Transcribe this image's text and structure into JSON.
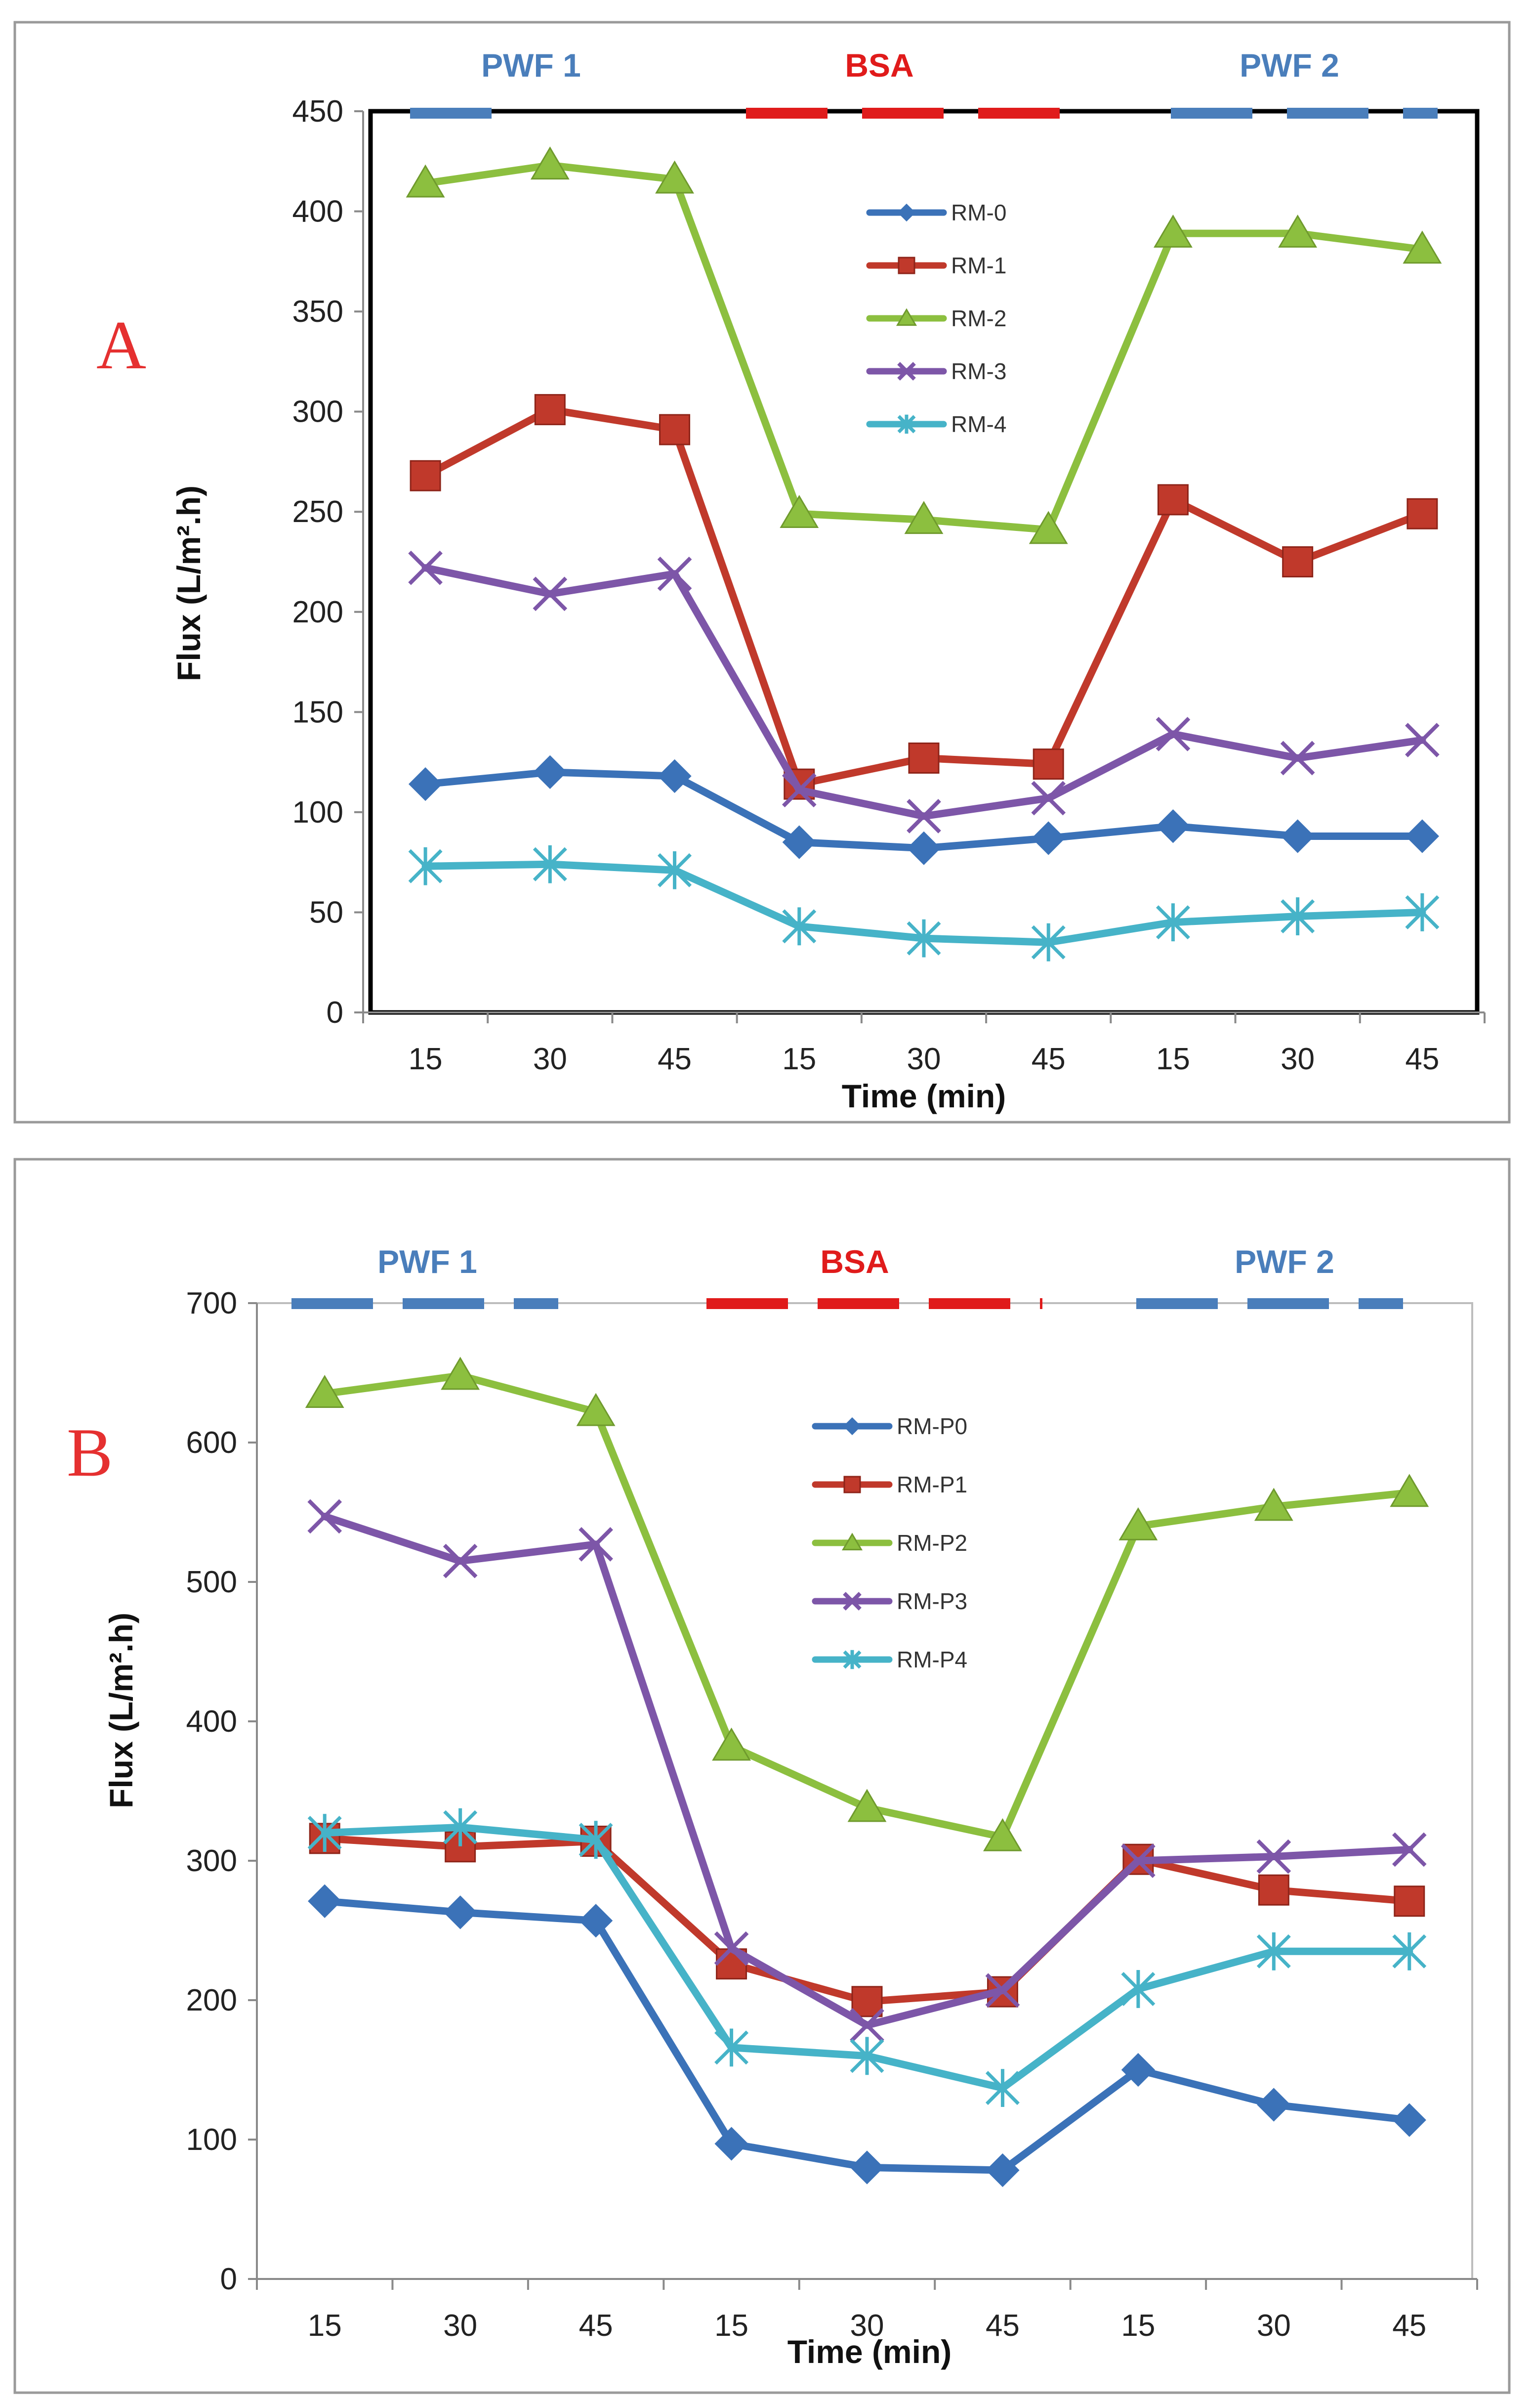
{
  "chart_data": [
    {
      "type": "line",
      "panel_label": "A",
      "xlabel": "Time (min)",
      "ylabel": "Flux (L/m².h)",
      "ylim": [
        0,
        450
      ],
      "yticks": [
        0,
        50,
        100,
        150,
        200,
        250,
        300,
        350,
        400,
        450
      ],
      "categories": [
        "15",
        "30",
        "45",
        "15",
        "30",
        "45",
        "15",
        "30",
        "45"
      ],
      "phases": [
        {
          "label": "PWF 1",
          "color": "#4a7ebb"
        },
        {
          "label": "BSA",
          "color": "#e01b1b"
        },
        {
          "label": "PWF 2",
          "color": "#4a7ebb"
        }
      ],
      "legend_position": "top-center",
      "series": [
        {
          "name": "RM-0",
          "color": "#3b72b8",
          "marker": "diamond",
          "values": [
            114,
            120,
            118,
            85,
            82,
            87,
            93,
            88,
            88
          ]
        },
        {
          "name": "RM-1",
          "color": "#c0392b",
          "marker": "square",
          "values": [
            268,
            301,
            291,
            114,
            127,
            124,
            256,
            225,
            249
          ]
        },
        {
          "name": "RM-2",
          "color": "#8cbf3f",
          "marker": "triangle",
          "values": [
            414,
            423,
            416,
            249,
            246,
            241,
            389,
            389,
            381
          ]
        },
        {
          "name": "RM-3",
          "color": "#7d56a8",
          "marker": "x",
          "values": [
            222,
            209,
            219,
            111,
            98,
            107,
            139,
            127,
            136
          ]
        },
        {
          "name": "RM-4",
          "color": "#46b3c8",
          "marker": "star",
          "values": [
            73,
            74,
            71,
            43,
            37,
            35,
            45,
            48,
            50
          ]
        }
      ]
    },
    {
      "type": "line",
      "panel_label": "B",
      "xlabel": "Time (min)",
      "ylabel": "Flux (L/m².h)",
      "ylim": [
        0,
        700
      ],
      "yticks": [
        0,
        100,
        200,
        300,
        400,
        500,
        600,
        700
      ],
      "categories": [
        "15",
        "30",
        "45",
        "15",
        "30",
        "45",
        "15",
        "30",
        "45"
      ],
      "phases": [
        {
          "label": "PWF 1",
          "color": "#4a7ebb"
        },
        {
          "label": "BSA",
          "color": "#e01b1b"
        },
        {
          "label": "PWF 2",
          "color": "#4a7ebb"
        }
      ],
      "legend_position": "top-center",
      "series": [
        {
          "name": "RM-P0",
          "color": "#3b72b8",
          "marker": "diamond",
          "values": [
            271,
            263,
            257,
            97,
            80,
            78,
            150,
            125,
            114
          ]
        },
        {
          "name": "RM-P1",
          "color": "#c0392b",
          "marker": "square",
          "values": [
            316,
            310,
            314,
            226,
            199,
            206,
            301,
            279,
            271
          ]
        },
        {
          "name": "RM-P2",
          "color": "#8cbf3f",
          "marker": "triangle",
          "values": [
            635,
            648,
            622,
            382,
            338,
            317,
            540,
            554,
            564
          ]
        },
        {
          "name": "RM-P3",
          "color": "#7d56a8",
          "marker": "x",
          "values": [
            547,
            515,
            527,
            237,
            182,
            207,
            300,
            303,
            308
          ]
        },
        {
          "name": "RM-P4",
          "color": "#46b3c8",
          "marker": "star",
          "values": [
            320,
            324,
            315,
            166,
            160,
            137,
            208,
            235,
            235
          ]
        }
      ]
    }
  ]
}
